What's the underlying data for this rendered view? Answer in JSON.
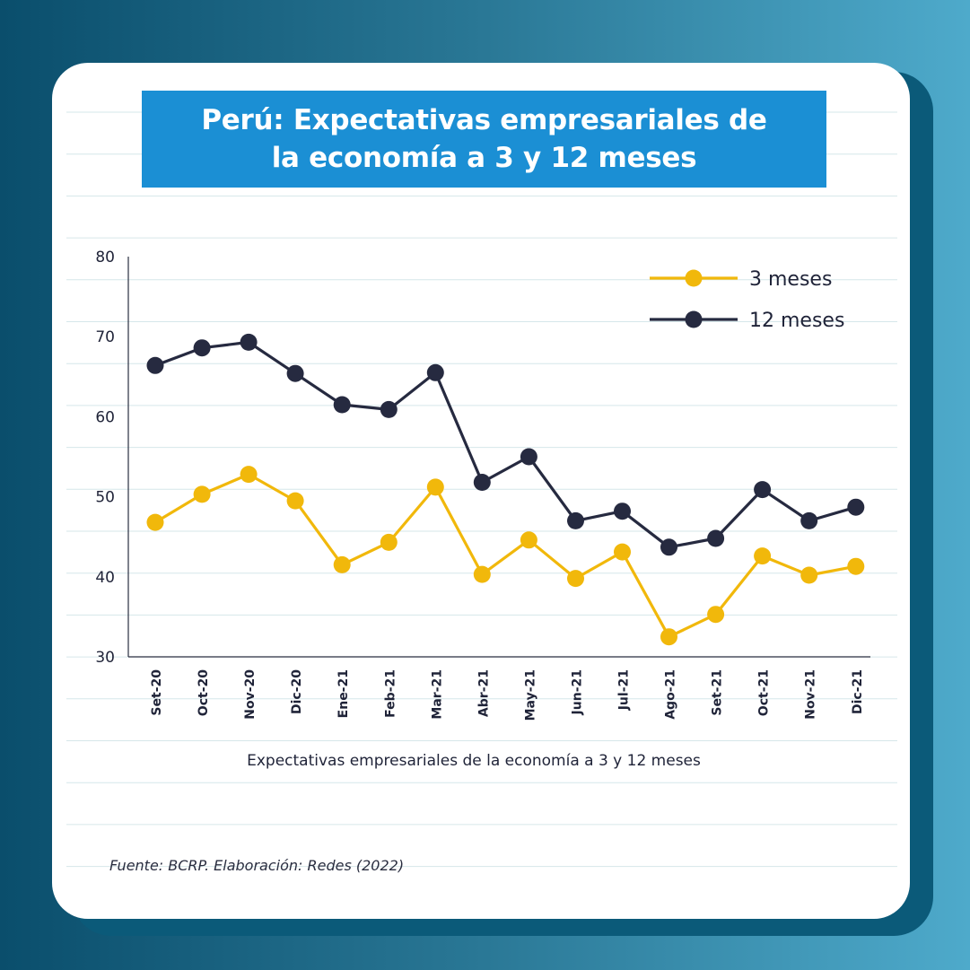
{
  "title_line1": "Perú: Expectativas empresariales de",
  "title_line2": "la economía a 3 y 12 meses",
  "subtitle": "Expectativas empresariales de la economía a 3 y 12 meses",
  "source": "Fuente: BCRP. Elaboración: Redes (2022)",
  "colors": {
    "background": "#1b6f8f",
    "title_box": "#1b8fd4",
    "series_3m": "#f1b80b",
    "series_12m": "#262a40"
  },
  "chart_data": {
    "type": "line",
    "x": [
      "Set-20",
      "Oct-20",
      "Nov-20",
      "Dic-20",
      "Ene-21",
      "Feb-21",
      "Mar-21",
      "Abr-21",
      "May-21",
      "Jun-21",
      "Jul-21",
      "Ago-21",
      "Set-21",
      "Oct-21",
      "Nov-21",
      "Dic-21"
    ],
    "series": [
      {
        "name": "3 meses",
        "color": "#f1b80b",
        "values": [
          46.8,
          50.3,
          52.8,
          49.5,
          41.5,
          44.3,
          51.2,
          40.3,
          44.6,
          39.8,
          43.1,
          32.5,
          35.3,
          42.6,
          40.2,
          41.3
        ]
      },
      {
        "name": "12 meses",
        "color": "#262a40",
        "values": [
          66.4,
          68.6,
          69.3,
          65.4,
          61.5,
          60.9,
          65.5,
          51.8,
          55.0,
          47.0,
          48.2,
          43.7,
          44.8,
          50.9,
          47.0,
          48.7
        ]
      }
    ],
    "yticks": [
      30,
      40,
      50,
      60,
      70,
      80
    ],
    "ylim": [
      30,
      80
    ],
    "legend": "top-right",
    "grid": false
  }
}
